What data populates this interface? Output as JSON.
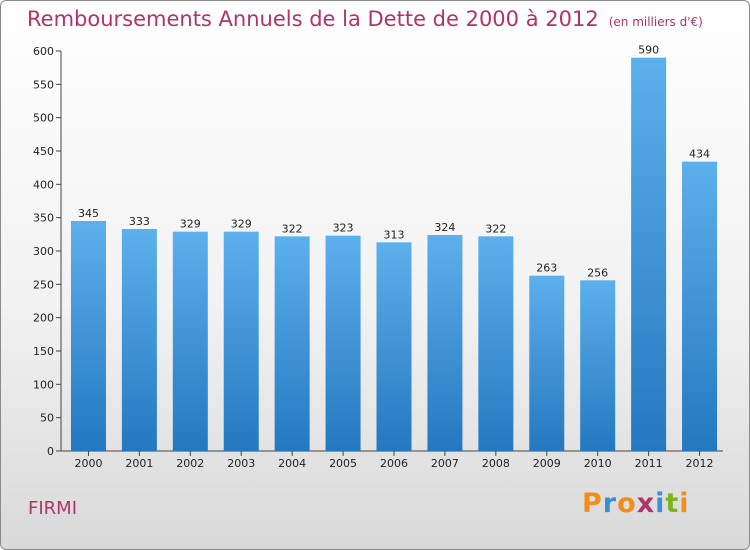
{
  "title": "Remboursements Annuels de la Dette de 2000 à 2012",
  "unit": "(en milliers d'€)",
  "commune": "FIRMI",
  "logo": "Proxiti",
  "colors": {
    "bar": "#2f8fd8",
    "title": "#b0336b",
    "logo": [
      "#f28c1c",
      "#3a8fd6",
      "#f28c1c",
      "#b0336b",
      "#3a8fd6",
      "#7ab51d",
      "#f28c1c"
    ]
  },
  "chart_data": {
    "type": "bar",
    "categories": [
      "2000",
      "2001",
      "2002",
      "2003",
      "2004",
      "2005",
      "2006",
      "2007",
      "2008",
      "2009",
      "2010",
      "2011",
      "2012"
    ],
    "values": [
      345,
      333,
      329,
      329,
      322,
      323,
      313,
      324,
      322,
      263,
      256,
      590,
      434
    ],
    "title": "Remboursements Annuels de la Dette de 2000 à 2012",
    "ylim": [
      0,
      600
    ],
    "yticks": [
      0,
      50,
      100,
      150,
      200,
      250,
      300,
      350,
      400,
      450,
      500,
      550,
      600
    ],
    "grid": false
  }
}
